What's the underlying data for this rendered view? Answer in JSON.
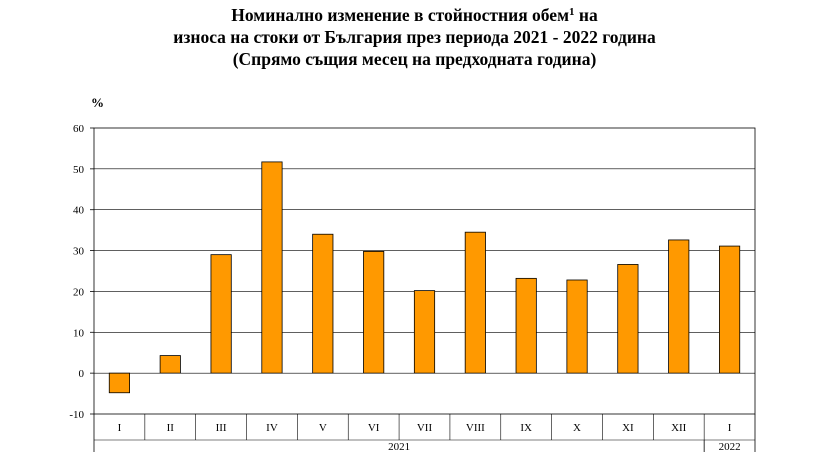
{
  "title": {
    "line1_text": "Номинално изменение в стойностния обем",
    "line1_sup": "1",
    "line1_end": " на",
    "line2": "износа на стоки от България през периода 2021 - 2022 година",
    "line3": "(Спрямо същия месец на предходната година)"
  },
  "chart_data": {
    "type": "bar",
    "ylabel": "%",
    "ylim": [
      -10,
      60
    ],
    "yticks": [
      -10,
      0,
      10,
      20,
      30,
      40,
      50,
      60
    ],
    "categories": [
      "I",
      "II",
      "III",
      "IV",
      "V",
      "VI",
      "VII",
      "VIII",
      "IX",
      "X",
      "XI",
      "XII",
      "I"
    ],
    "values": [
      -4.8,
      4.3,
      29.0,
      51.7,
      34.0,
      29.8,
      20.2,
      34.5,
      23.2,
      22.8,
      26.6,
      32.6,
      31.1
    ],
    "years": [
      {
        "label": "2021",
        "count": 12
      },
      {
        "label": "2022",
        "count": 1
      }
    ],
    "bar_color": "#FF9900",
    "grid": true,
    "legend": "none"
  }
}
